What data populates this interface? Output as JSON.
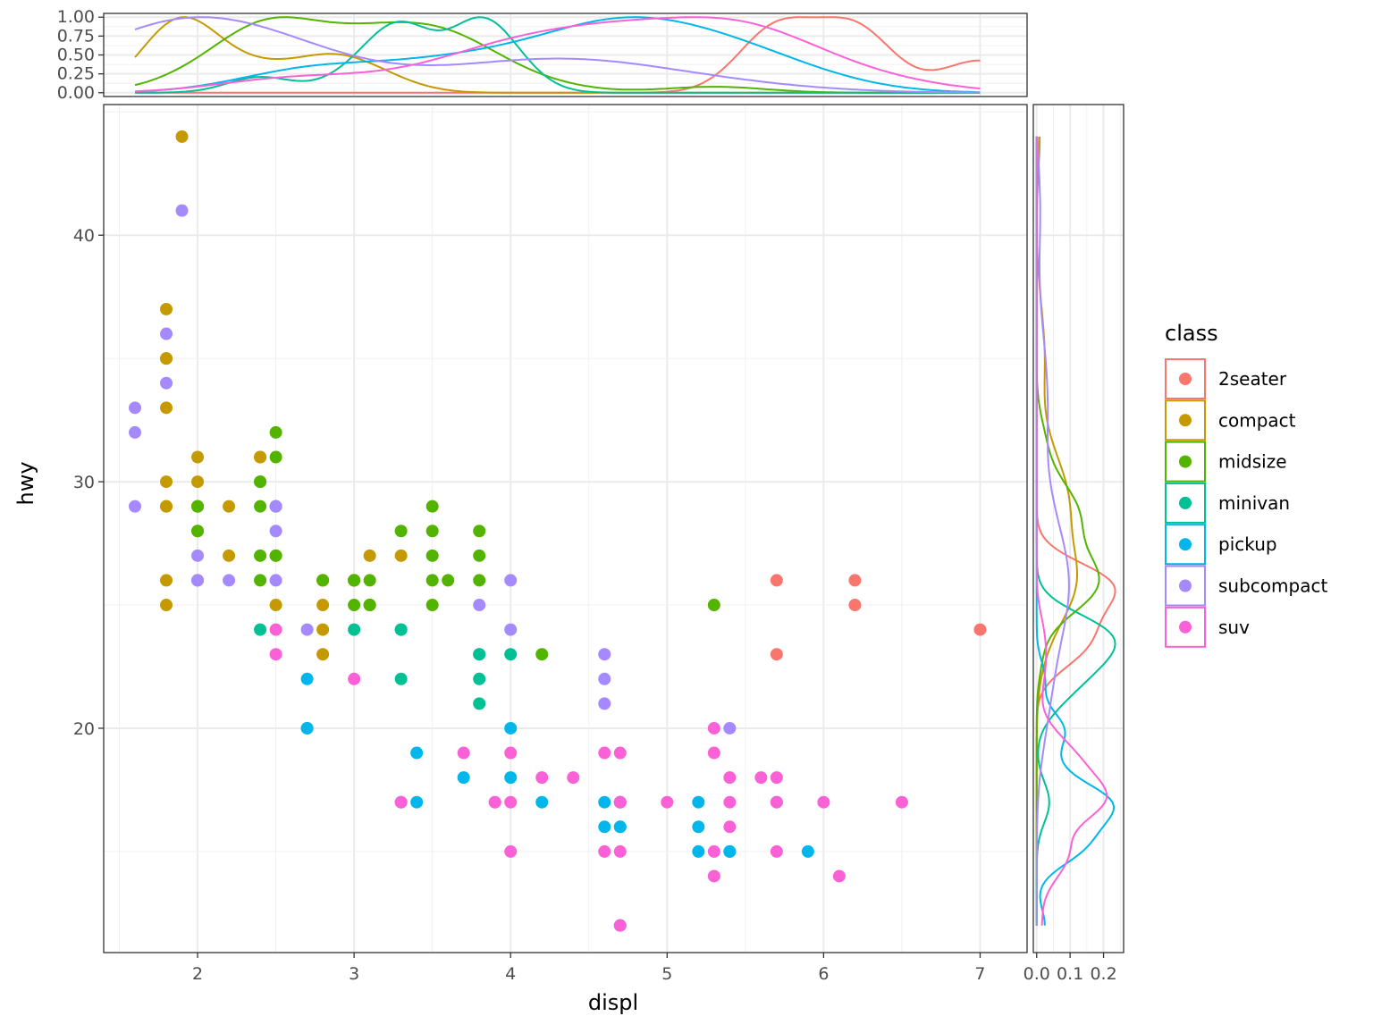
{
  "chart_data": {
    "type": "scatter",
    "xlabel": "displ",
    "ylabel": "hwy",
    "xlim": [
      1.4,
      7.3
    ],
    "ylim": [
      10.9,
      45.3
    ],
    "xticks": [
      2,
      3,
      4,
      5,
      6,
      7
    ],
    "yticks": [
      20,
      30,
      40
    ],
    "grid": true,
    "legend": {
      "title": "class",
      "position": "right"
    },
    "series": [
      {
        "name": "2seater",
        "color": "#F8766D",
        "points": [
          [
            5.7,
            26
          ],
          [
            5.7,
            23
          ],
          [
            6.2,
            26
          ],
          [
            6.2,
            25
          ],
          [
            7.0,
            24
          ]
        ]
      },
      {
        "name": "compact",
        "color": "#C49A00",
        "points": [
          [
            1.8,
            29
          ],
          [
            1.8,
            29
          ],
          [
            2.0,
            31
          ],
          [
            2.0,
            30
          ],
          [
            2.8,
            26
          ],
          [
            2.8,
            26
          ],
          [
            3.1,
            27
          ],
          [
            1.8,
            26
          ],
          [
            1.8,
            25
          ],
          [
            2.0,
            28
          ],
          [
            2.0,
            29
          ],
          [
            2.8,
            25
          ],
          [
            2.8,
            24
          ],
          [
            3.1,
            25
          ],
          [
            2.2,
            27
          ],
          [
            2.2,
            29
          ],
          [
            2.4,
            31
          ],
          [
            2.4,
            31
          ],
          [
            3.0,
            26
          ],
          [
            3.0,
            26
          ],
          [
            3.3,
            27
          ],
          [
            2.0,
            26
          ],
          [
            2.0,
            29
          ],
          [
            2.8,
            23
          ],
          [
            1.9,
            44
          ],
          [
            2.0,
            29
          ],
          [
            2.5,
            25
          ],
          [
            2.5,
            27
          ],
          [
            1.8,
            33
          ],
          [
            1.8,
            35
          ],
          [
            1.8,
            37
          ],
          [
            1.8,
            35
          ],
          [
            1.8,
            30
          ]
        ]
      },
      {
        "name": "midsize",
        "color": "#53B400",
        "points": [
          [
            2.8,
            26
          ],
          [
            3.1,
            25
          ],
          [
            4.2,
            23
          ],
          [
            2.4,
            30
          ],
          [
            2.4,
            26
          ],
          [
            3.1,
            26
          ],
          [
            3.5,
            29
          ],
          [
            3.6,
            26
          ],
          [
            2.0,
            29
          ],
          [
            2.0,
            28
          ],
          [
            2.4,
            27
          ],
          [
            2.4,
            30
          ],
          [
            2.5,
            29
          ],
          [
            2.5,
            27
          ],
          [
            3.3,
            28
          ],
          [
            3.5,
            26
          ],
          [
            3.5,
            25
          ],
          [
            3.8,
            28
          ],
          [
            3.8,
            27
          ],
          [
            3.8,
            26
          ],
          [
            5.3,
            25
          ],
          [
            2.5,
            32
          ],
          [
            2.5,
            31
          ],
          [
            2.5,
            29
          ],
          [
            3.0,
            25
          ],
          [
            3.0,
            26
          ],
          [
            3.5,
            27
          ],
          [
            3.5,
            28
          ],
          [
            2.4,
            29
          ],
          [
            3.0,
            26
          ],
          [
            3.1,
            25
          ]
        ]
      },
      {
        "name": "minivan",
        "color": "#00C094",
        "points": [
          [
            2.4,
            24
          ],
          [
            3.0,
            24
          ],
          [
            3.3,
            22
          ],
          [
            3.3,
            24
          ],
          [
            3.3,
            24
          ],
          [
            3.8,
            22
          ],
          [
            3.8,
            21
          ],
          [
            3.8,
            23
          ],
          [
            3.8,
            23
          ],
          [
            4.0,
            23
          ],
          [
            3.3,
            17
          ]
        ]
      },
      {
        "name": "pickup",
        "color": "#00B6EB",
        "points": [
          [
            2.7,
            20
          ],
          [
            2.7,
            20
          ],
          [
            2.7,
            22
          ],
          [
            3.4,
            17
          ],
          [
            3.4,
            19
          ],
          [
            3.7,
            18
          ],
          [
            4.0,
            20
          ],
          [
            4.0,
            18
          ],
          [
            4.7,
            17
          ],
          [
            4.7,
            16
          ],
          [
            4.7,
            16
          ],
          [
            5.2,
            15
          ],
          [
            5.2,
            16
          ],
          [
            5.7,
            17
          ],
          [
            5.9,
            15
          ],
          [
            4.6,
            17
          ],
          [
            4.6,
            16
          ],
          [
            5.4,
            15
          ],
          [
            5.4,
            15
          ],
          [
            4.2,
            17
          ],
          [
            4.7,
            12
          ],
          [
            5.2,
            17
          ],
          [
            4.7,
            17
          ]
        ]
      },
      {
        "name": "subcompact",
        "color": "#A58AFF",
        "points": [
          [
            2.0,
            26
          ],
          [
            2.0,
            27
          ],
          [
            1.6,
            33
          ],
          [
            1.6,
            32
          ],
          [
            1.6,
            29
          ],
          [
            1.8,
            34
          ],
          [
            1.8,
            36
          ],
          [
            1.9,
            41
          ],
          [
            2.0,
            26
          ],
          [
            2.2,
            26
          ],
          [
            2.5,
            26
          ],
          [
            2.5,
            28
          ],
          [
            2.5,
            29
          ],
          [
            2.7,
            24
          ],
          [
            3.8,
            25
          ],
          [
            4.0,
            26
          ],
          [
            4.0,
            24
          ],
          [
            4.6,
            23
          ],
          [
            4.6,
            22
          ],
          [
            4.6,
            21
          ],
          [
            5.4,
            20
          ]
        ]
      },
      {
        "name": "suv",
        "color": "#FB61D7",
        "points": [
          [
            2.5,
            24
          ],
          [
            2.5,
            23
          ],
          [
            3.0,
            22
          ],
          [
            3.3,
            17
          ],
          [
            3.7,
            19
          ],
          [
            3.9,
            17
          ],
          [
            4.0,
            19
          ],
          [
            4.0,
            17
          ],
          [
            4.0,
            15
          ],
          [
            4.2,
            18
          ],
          [
            4.4,
            18
          ],
          [
            4.6,
            19
          ],
          [
            4.6,
            15
          ],
          [
            4.7,
            19
          ],
          [
            4.7,
            17
          ],
          [
            4.7,
            15
          ],
          [
            4.7,
            12
          ],
          [
            5.0,
            17
          ],
          [
            5.3,
            20
          ],
          [
            5.3,
            19
          ],
          [
            5.3,
            15
          ],
          [
            5.3,
            14
          ],
          [
            5.4,
            18
          ],
          [
            5.4,
            17
          ],
          [
            5.4,
            16
          ],
          [
            5.6,
            18
          ],
          [
            5.7,
            18
          ],
          [
            5.7,
            17
          ],
          [
            5.7,
            15
          ],
          [
            6.0,
            17
          ],
          [
            6.1,
            14
          ],
          [
            6.5,
            17
          ],
          [
            3.9,
            17
          ],
          [
            4.7,
            17
          ]
        ]
      }
    ],
    "marginal_top": {
      "type": "density",
      "yticks": [
        "0.00",
        "0.25",
        "0.50",
        "0.75",
        "1.00"
      ]
    },
    "marginal_right": {
      "type": "density",
      "xticks": [
        "0.0",
        "0.1",
        "0.2"
      ]
    }
  }
}
